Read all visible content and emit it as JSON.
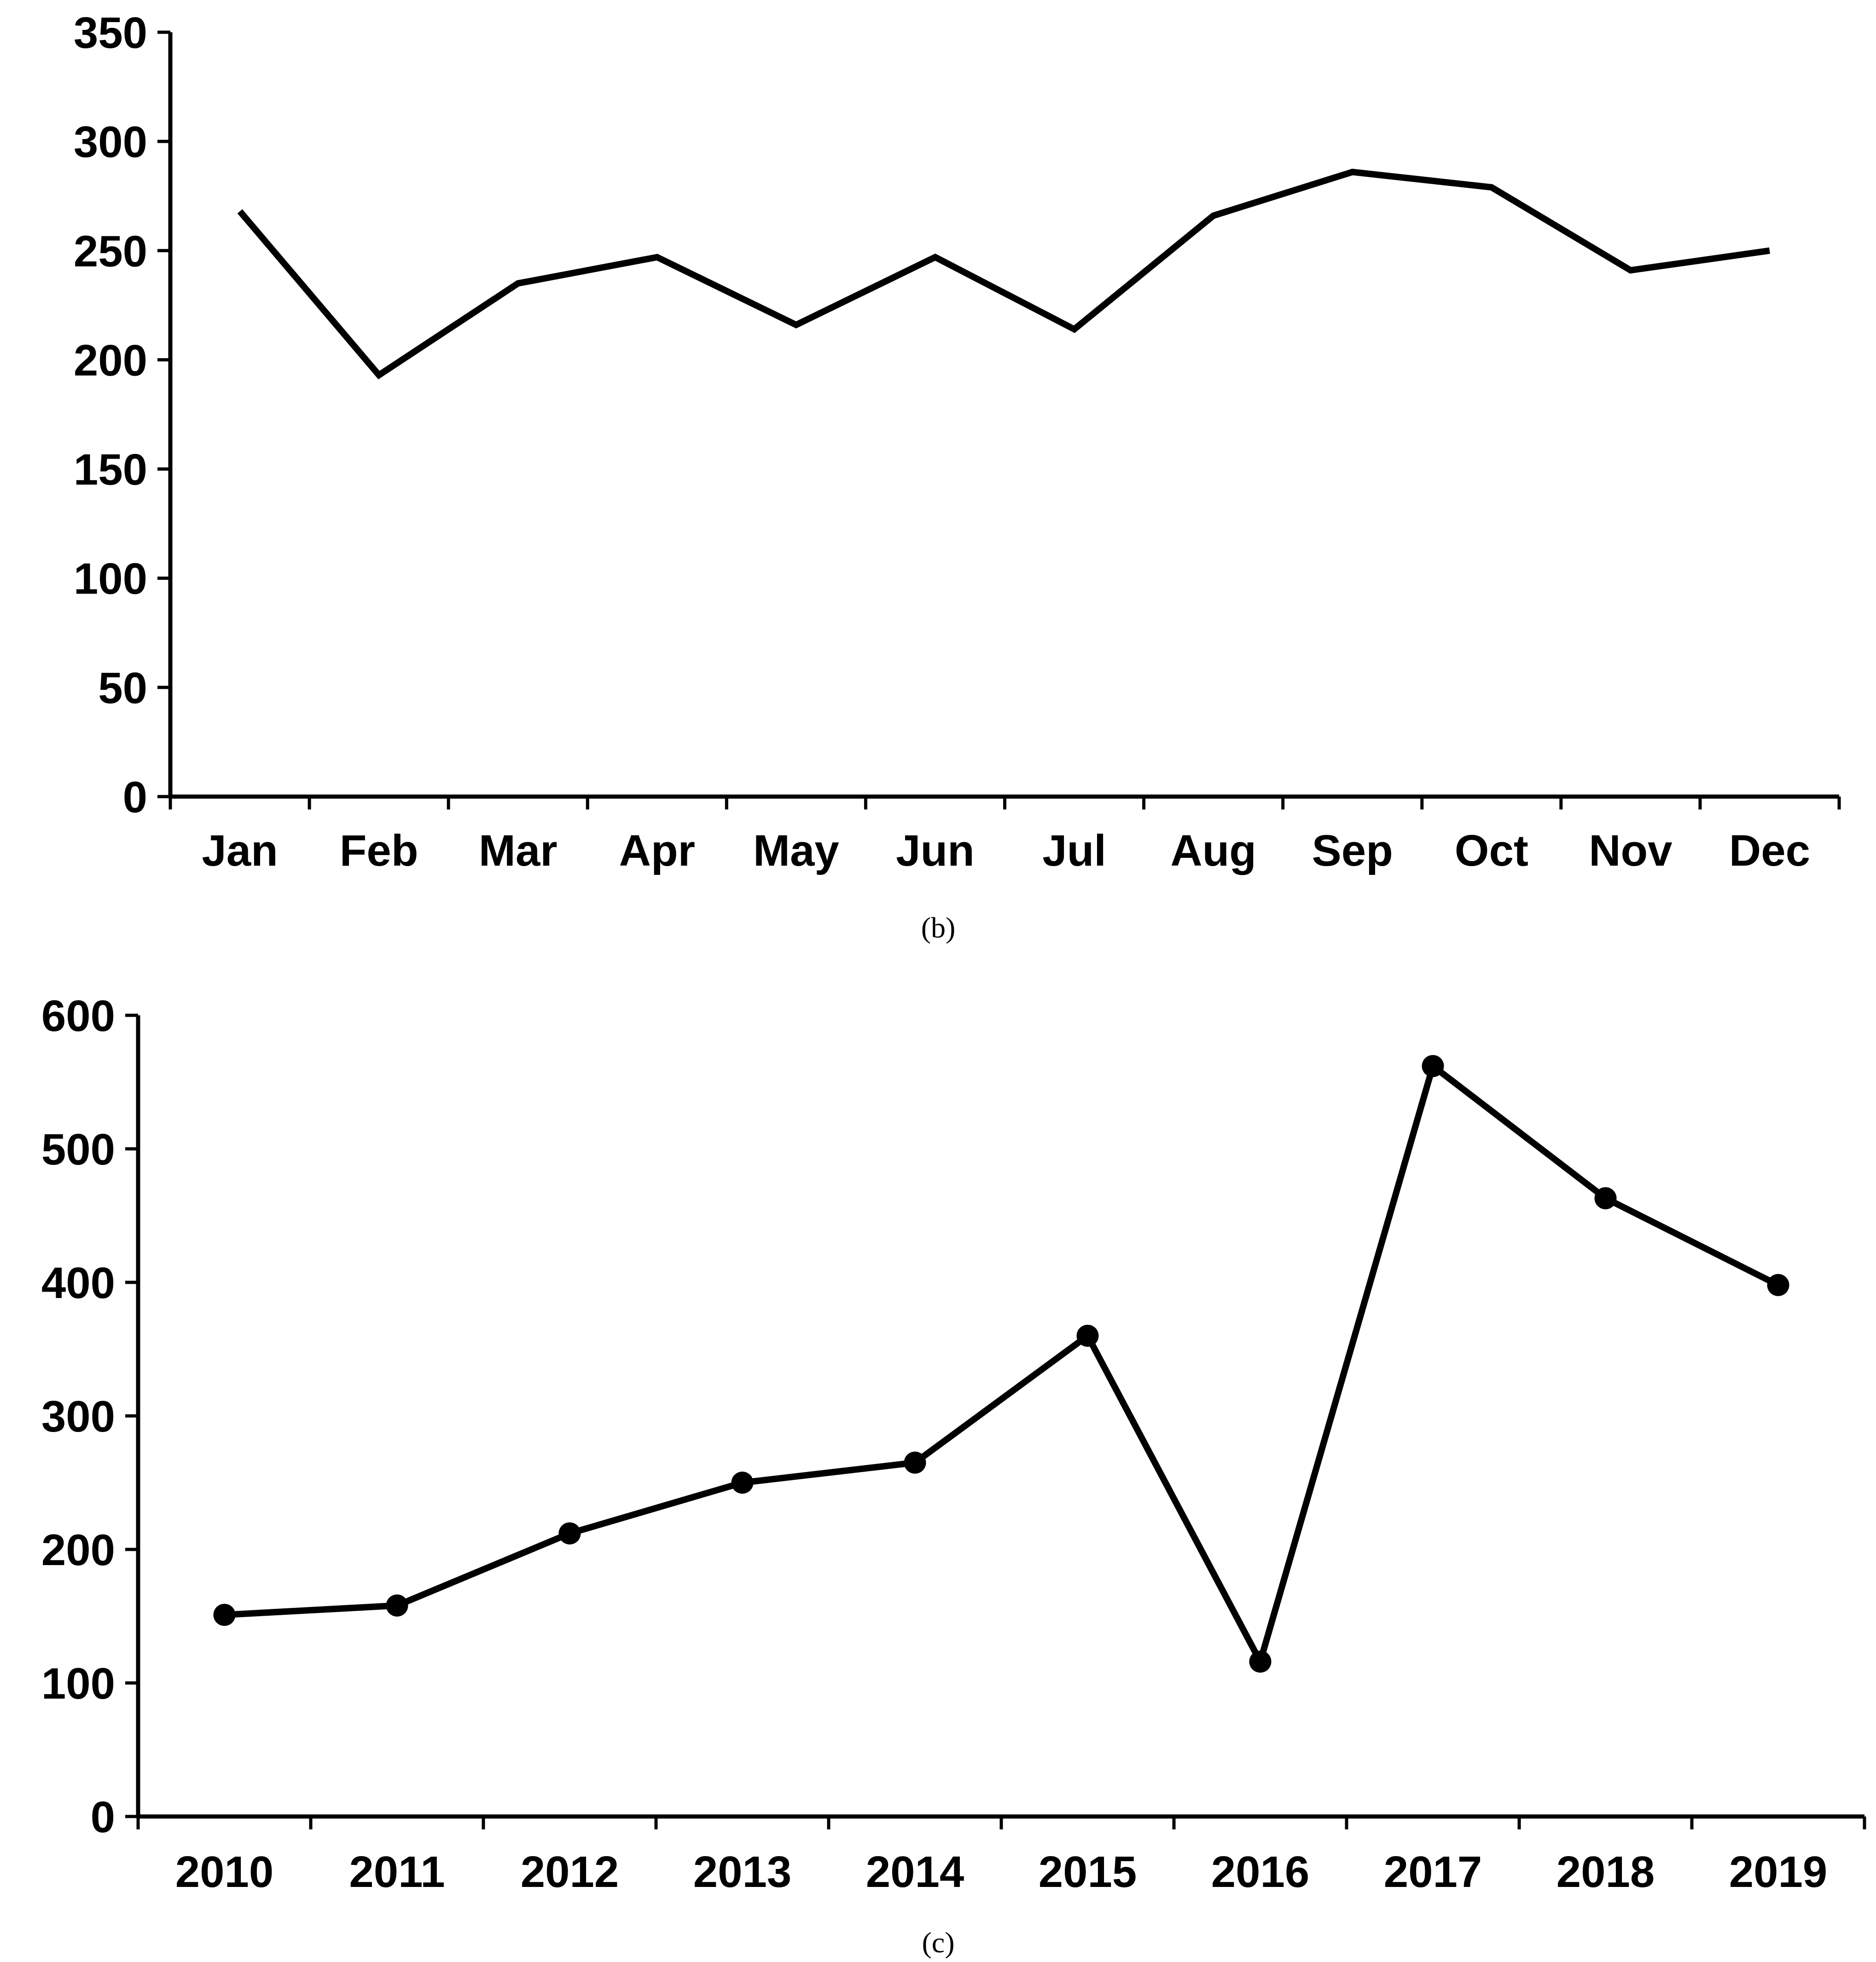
{
  "chart_data": [
    {
      "type": "line",
      "caption": "(b)",
      "categories": [
        "Jan",
        "Feb",
        "Mar",
        "Apr",
        "May",
        "Jun",
        "Jul",
        "Aug",
        "Sep",
        "Oct",
        "Nov",
        "Dec"
      ],
      "values": [
        268,
        193,
        235,
        247,
        216,
        247,
        214,
        266,
        286,
        279,
        241,
        250
      ],
      "yticks": [
        "0",
        "50",
        "100",
        "150",
        "200",
        "250",
        "300",
        "350"
      ],
      "ylim": [
        0,
        350
      ],
      "markers": false,
      "grid": false,
      "legend": "none",
      "color": "#000000"
    },
    {
      "type": "line",
      "caption": "(c)",
      "categories": [
        "2010",
        "2011",
        "2012",
        "2013",
        "2014",
        "2015",
        "2016",
        "2017",
        "2018",
        "2019"
      ],
      "values": [
        151,
        158,
        212,
        250,
        265,
        360,
        116,
        562,
        463,
        398
      ],
      "yticks": [
        "0",
        "100",
        "200",
        "300",
        "400",
        "500",
        "600"
      ],
      "ylim": [
        0,
        600
      ],
      "markers": true,
      "grid": false,
      "legend": "none",
      "color": "#000000"
    }
  ]
}
